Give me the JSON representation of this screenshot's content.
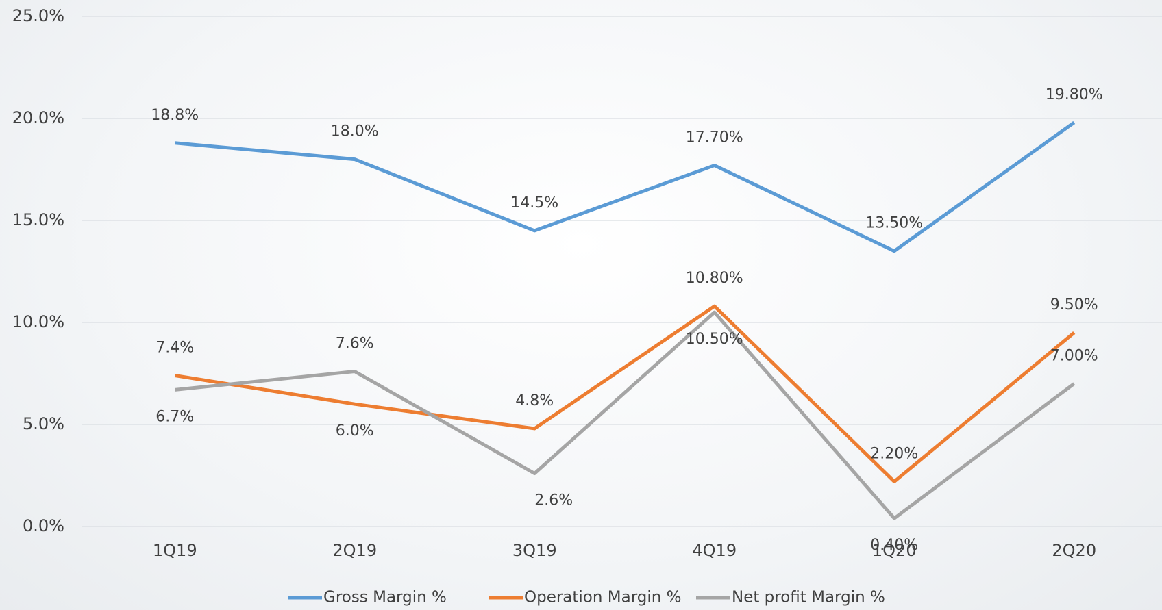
{
  "chart_data": {
    "type": "line",
    "categories": [
      "1Q19",
      "2Q19",
      "3Q19",
      "4Q19",
      "1Q20",
      "2Q20"
    ],
    "series": [
      {
        "name": "Gross Margin %",
        "color": "#5b9bd5",
        "values": [
          18.8,
          18.0,
          14.5,
          17.7,
          13.5,
          19.8
        ],
        "value_labels": [
          "18.8%",
          "18.0%",
          "14.5%",
          "17.70%",
          "13.50%",
          "19.80%"
        ]
      },
      {
        "name": "Operation Margin %",
        "color": "#ed7d31",
        "values": [
          7.4,
          6.0,
          4.8,
          10.8,
          2.2,
          9.5
        ],
        "value_labels": [
          "7.4%",
          "6.0%",
          "4.8%",
          "10.80%",
          "2.20%",
          "9.50%"
        ]
      },
      {
        "name": "Net profit Margin %",
        "color": "#a5a5a5",
        "values": [
          6.7,
          7.6,
          2.6,
          10.5,
          0.4,
          7.0
        ],
        "value_labels": [
          "6.7%",
          "7.6%",
          "2.6%",
          "10.50%",
          "0.40%",
          "7.00%"
        ]
      }
    ],
    "ylim": [
      0,
      25
    ],
    "yticks": [
      {
        "value": 0,
        "label": "0.0%"
      },
      {
        "value": 5,
        "label": "5.0%"
      },
      {
        "value": 10,
        "label": "10.0%"
      },
      {
        "value": 15,
        "label": "15.0%"
      },
      {
        "value": 20,
        "label": "20.0%"
      },
      {
        "value": 25,
        "label": "25.0%"
      }
    ],
    "grid": true,
    "legend": "bottom"
  }
}
